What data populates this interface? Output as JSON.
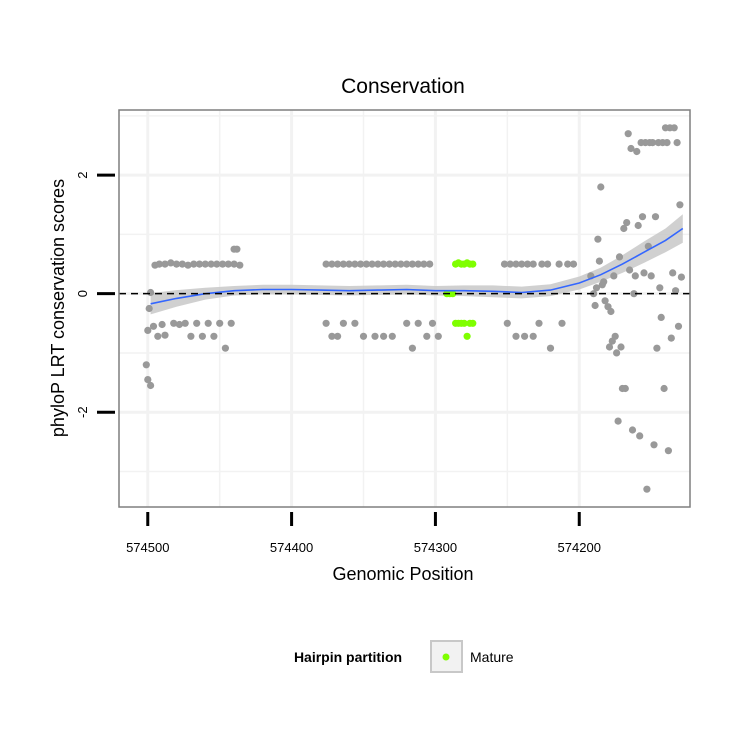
{
  "chart_data": {
    "type": "scatter",
    "title": "Conservation",
    "xlabel": "Genomic Position",
    "ylabel": "phyloP LRT conservation scores",
    "x_reversed": true,
    "xlim": [
      574520,
      574123
    ],
    "ylim": [
      -3.6,
      3.1
    ],
    "x_ticks": [
      574500,
      574400,
      574300,
      574200
    ],
    "y_ticks": [
      -2,
      0,
      2
    ],
    "grid": true,
    "reference_line": {
      "y": 0,
      "style": "dashed"
    },
    "legend": {
      "title": "Hairpin partition",
      "position": "bottom",
      "entries": [
        {
          "label": "Mature",
          "color": "#7fff00"
        }
      ]
    },
    "colors": {
      "other": "#999999",
      "mature": "#7fff00",
      "smooth": "#3366ff",
      "ribbon": "#c8c8c8",
      "panel_border": "#7f7f7f",
      "grid": "#f2f2f2"
    },
    "series": [
      {
        "category": "other",
        "points": [
          [
            574501,
            -1.2
          ],
          [
            574500,
            -1.45
          ],
          [
            574498,
            -1.55
          ],
          [
            574500,
            -0.62
          ],
          [
            574499,
            -0.25
          ],
          [
            574498,
            0.02
          ],
          [
            574496,
            -0.55
          ],
          [
            574495,
            0.48
          ],
          [
            574493,
            -0.72
          ],
          [
            574490,
            -0.52
          ],
          [
            574488,
            -0.7
          ],
          [
            574492,
            0.5
          ],
          [
            574488,
            0.5
          ],
          [
            574484,
            0.52
          ],
          [
            574480,
            0.5
          ],
          [
            574476,
            0.5
          ],
          [
            574472,
            0.48
          ],
          [
            574468,
            0.5
          ],
          [
            574464,
            0.5
          ],
          [
            574460,
            0.5
          ],
          [
            574456,
            0.5
          ],
          [
            574452,
            0.5
          ],
          [
            574448,
            0.5
          ],
          [
            574444,
            0.5
          ],
          [
            574440,
            0.5
          ],
          [
            574482,
            -0.5
          ],
          [
            574478,
            -0.52
          ],
          [
            574474,
            -0.5
          ],
          [
            574470,
            -0.72
          ],
          [
            574466,
            -0.5
          ],
          [
            574462,
            -0.72
          ],
          [
            574458,
            -0.5
          ],
          [
            574454,
            -0.72
          ],
          [
            574450,
            -0.5
          ],
          [
            574446,
            -0.92
          ],
          [
            574442,
            -0.5
          ],
          [
            574440,
            0.75
          ],
          [
            574438,
            0.75
          ],
          [
            574436,
            0.48
          ],
          [
            574376,
            0.5
          ],
          [
            574372,
            0.5
          ],
          [
            574368,
            0.5
          ],
          [
            574364,
            0.5
          ],
          [
            574360,
            0.5
          ],
          [
            574356,
            0.5
          ],
          [
            574352,
            0.5
          ],
          [
            574348,
            0.5
          ],
          [
            574344,
            0.5
          ],
          [
            574340,
            0.5
          ],
          [
            574336,
            0.5
          ],
          [
            574332,
            0.5
          ],
          [
            574328,
            0.5
          ],
          [
            574324,
            0.5
          ],
          [
            574320,
            0.5
          ],
          [
            574316,
            0.5
          ],
          [
            574312,
            0.5
          ],
          [
            574308,
            0.5
          ],
          [
            574304,
            0.5
          ],
          [
            574376,
            -0.5
          ],
          [
            574372,
            -0.72
          ],
          [
            574368,
            -0.72
          ],
          [
            574364,
            -0.5
          ],
          [
            574356,
            -0.5
          ],
          [
            574350,
            -0.72
          ],
          [
            574342,
            -0.72
          ],
          [
            574336,
            -0.72
          ],
          [
            574330,
            -0.72
          ],
          [
            574320,
            -0.5
          ],
          [
            574316,
            -0.92
          ],
          [
            574312,
            -0.5
          ],
          [
            574306,
            -0.72
          ],
          [
            574302,
            -0.5
          ],
          [
            574298,
            -0.72
          ],
          [
            574252,
            0.5
          ],
          [
            574248,
            0.5
          ],
          [
            574244,
            0.5
          ],
          [
            574240,
            0.5
          ],
          [
            574236,
            0.5
          ],
          [
            574232,
            0.5
          ],
          [
            574226,
            0.5
          ],
          [
            574222,
            0.5
          ],
          [
            574214,
            0.5
          ],
          [
            574208,
            0.5
          ],
          [
            574204,
            0.5
          ],
          [
            574250,
            -0.5
          ],
          [
            574244,
            -0.72
          ],
          [
            574238,
            -0.72
          ],
          [
            574232,
            -0.72
          ],
          [
            574228,
            -0.5
          ],
          [
            574220,
            -0.92
          ],
          [
            574212,
            -0.5
          ],
          [
            574192,
            0.3
          ],
          [
            574190,
            0.0
          ],
          [
            574189,
            -0.2
          ],
          [
            574188,
            0.1
          ],
          [
            574187,
            0.92
          ],
          [
            574186,
            0.55
          ],
          [
            574185,
            1.8
          ],
          [
            574184,
            0.15
          ],
          [
            574183,
            0.2
          ],
          [
            574182,
            -0.12
          ],
          [
            574180,
            -0.22
          ],
          [
            574179,
            -0.9
          ],
          [
            574178,
            -0.3
          ],
          [
            574177,
            -0.8
          ],
          [
            574176,
            0.3
          ],
          [
            574175,
            -0.72
          ],
          [
            574174,
            -1.0
          ],
          [
            574173,
            -2.15
          ],
          [
            574172,
            0.62
          ],
          [
            574171,
            -0.9
          ],
          [
            574170,
            -1.6
          ],
          [
            574169,
            1.1
          ],
          [
            574168,
            -1.6
          ],
          [
            574167,
            1.2
          ],
          [
            574166,
            2.7
          ],
          [
            574165,
            0.4
          ],
          [
            574164,
            2.45
          ],
          [
            574163,
            -2.3
          ],
          [
            574162,
            0.0
          ],
          [
            574161,
            0.3
          ],
          [
            574160,
            2.4
          ],
          [
            574159,
            1.15
          ],
          [
            574158,
            -2.4
          ],
          [
            574157,
            2.55
          ],
          [
            574156,
            1.3
          ],
          [
            574155,
            0.35
          ],
          [
            574154,
            2.55
          ],
          [
            574153,
            -3.3
          ],
          [
            574152,
            0.8
          ],
          [
            574151,
            2.55
          ],
          [
            574150,
            0.3
          ],
          [
            574149,
            2.55
          ],
          [
            574148,
            -2.55
          ],
          [
            574147,
            1.3
          ],
          [
            574146,
            -0.92
          ],
          [
            574145,
            2.55
          ],
          [
            574144,
            0.1
          ],
          [
            574143,
            -0.4
          ],
          [
            574142,
            2.55
          ],
          [
            574141,
            -1.6
          ],
          [
            574140,
            2.8
          ],
          [
            574139,
            2.55
          ],
          [
            574138,
            -2.65
          ],
          [
            574137,
            2.8
          ],
          [
            574136,
            -0.75
          ],
          [
            574135,
            0.35
          ],
          [
            574134,
            2.8
          ],
          [
            574133,
            0.05
          ],
          [
            574132,
            2.55
          ],
          [
            574131,
            -0.55
          ],
          [
            574130,
            1.5
          ],
          [
            574129,
            0.28
          ]
        ]
      },
      {
        "category": "mature",
        "points": [
          [
            574286,
            0.5
          ],
          [
            574284,
            0.52
          ],
          [
            574282,
            0.5
          ],
          [
            574280,
            0.5
          ],
          [
            574278,
            0.52
          ],
          [
            574276,
            0.5
          ],
          [
            574274,
            0.5
          ],
          [
            574286,
            -0.5
          ],
          [
            574284,
            -0.5
          ],
          [
            574282,
            -0.5
          ],
          [
            574280,
            -0.5
          ],
          [
            574278,
            -0.72
          ],
          [
            574276,
            -0.5
          ],
          [
            574274,
            -0.5
          ],
          [
            574292,
            0.0
          ],
          [
            574290,
            0.0
          ],
          [
            574288,
            0.0
          ]
        ]
      }
    ],
    "smooth": {
      "x": [
        574498,
        574480,
        574460,
        574440,
        574420,
        574400,
        574380,
        574360,
        574340,
        574320,
        574300,
        574280,
        574260,
        574240,
        574220,
        574200,
        574185,
        574170,
        574155,
        574140,
        574128
      ],
      "y": [
        -0.17,
        -0.08,
        0.0,
        0.05,
        0.07,
        0.07,
        0.06,
        0.05,
        0.06,
        0.07,
        0.05,
        0.05,
        0.04,
        0.02,
        0.06,
        0.18,
        0.32,
        0.5,
        0.7,
        0.9,
        1.1
      ],
      "se": [
        0.18,
        0.14,
        0.1,
        0.08,
        0.08,
        0.08,
        0.08,
        0.08,
        0.08,
        0.08,
        0.08,
        0.09,
        0.1,
        0.1,
        0.1,
        0.11,
        0.12,
        0.15,
        0.18,
        0.2,
        0.24
      ]
    }
  }
}
